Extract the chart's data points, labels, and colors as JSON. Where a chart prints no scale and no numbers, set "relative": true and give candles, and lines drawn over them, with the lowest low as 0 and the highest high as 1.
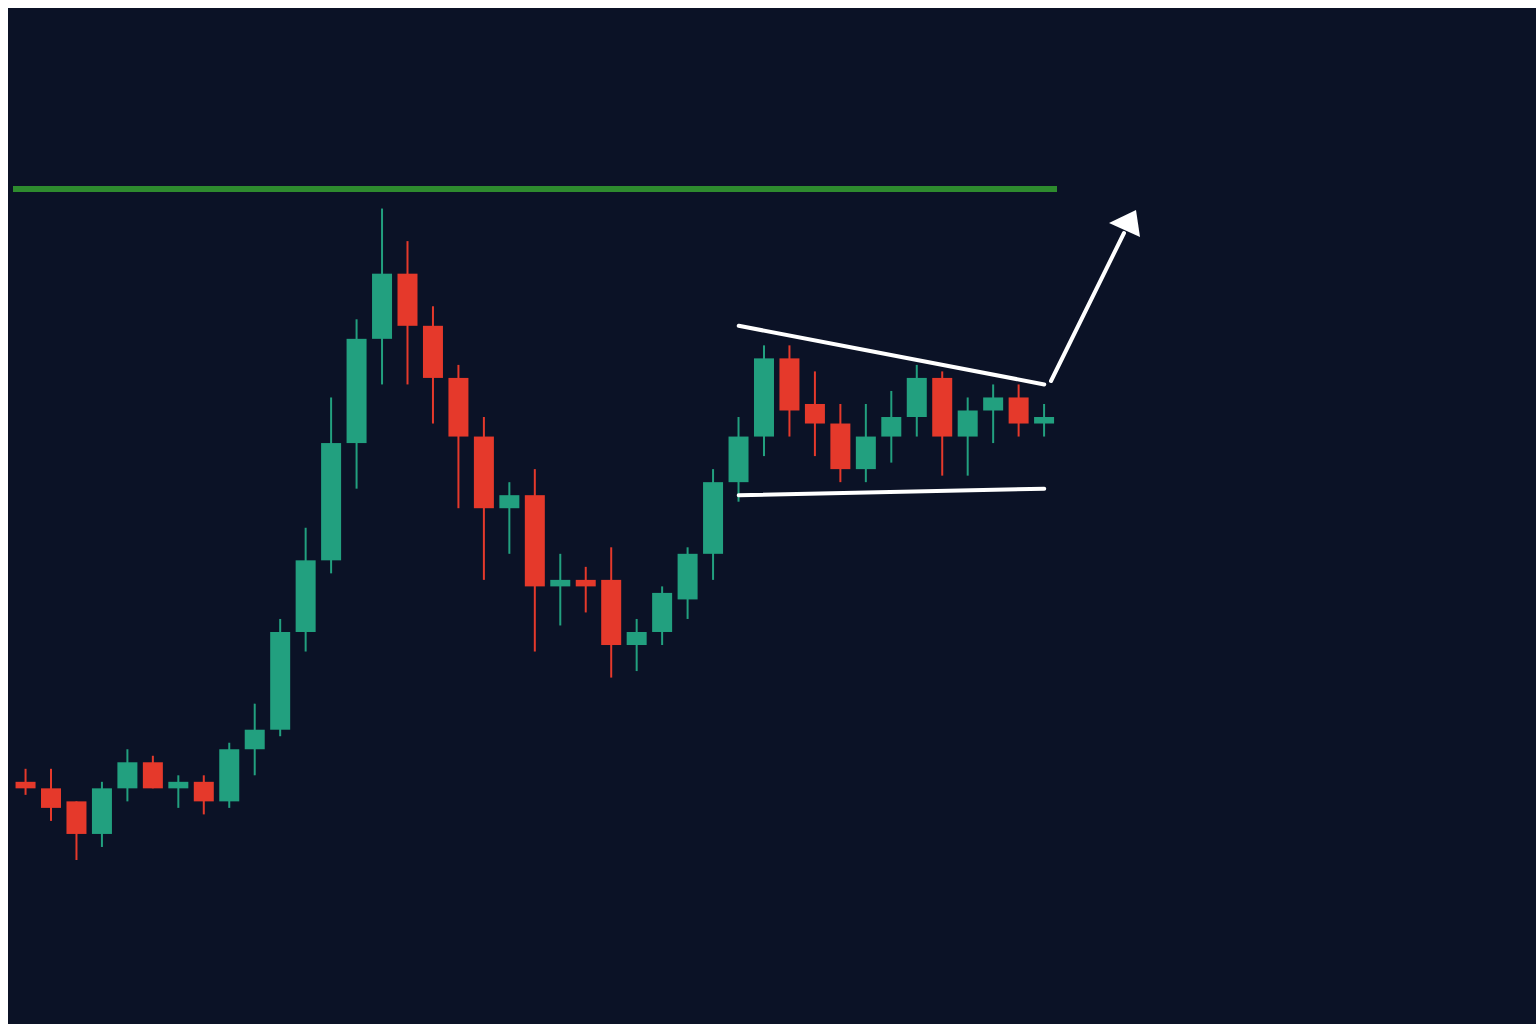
{
  "chart_data": {
    "type": "candlestick",
    "relative": true,
    "tick_labels": false,
    "grid": false,
    "legend": false,
    "categories": [
      null,
      null,
      null,
      null,
      null,
      null,
      null,
      null,
      null,
      null,
      null,
      null,
      null,
      null,
      null,
      null,
      null,
      null,
      null,
      null,
      null,
      null,
      null,
      null,
      null,
      null,
      null,
      null,
      null,
      null,
      null,
      null,
      null,
      null,
      null,
      null,
      null,
      null,
      null,
      null,
      null
    ],
    "ohlc": [
      [
        0.12,
        0.14,
        0.1,
        0.11
      ],
      [
        0.11,
        0.14,
        0.06,
        0.08
      ],
      [
        0.09,
        0.09,
        0,
        0.04
      ],
      [
        0.04,
        0.12,
        0.02,
        0.11
      ],
      [
        0.11,
        0.17,
        0.09,
        0.15
      ],
      [
        0.15,
        0.16,
        0.11,
        0.11
      ],
      [
        0.11,
        0.13,
        0.08,
        0.12
      ],
      [
        0.12,
        0.13,
        0.07,
        0.09
      ],
      [
        0.09,
        0.18,
        0.08,
        0.17
      ],
      [
        0.17,
        0.24,
        0.13,
        0.2
      ],
      [
        0.2,
        0.37,
        0.19,
        0.35
      ],
      [
        0.35,
        0.51,
        0.32,
        0.46
      ],
      [
        0.46,
        0.71,
        0.44,
        0.64
      ],
      [
        0.64,
        0.83,
        0.57,
        0.8
      ],
      [
        0.8,
        1,
        0.73,
        0.9
      ],
      [
        0.9,
        0.95,
        0.73,
        0.82
      ],
      [
        0.82,
        0.85,
        0.67,
        0.74
      ],
      [
        0.74,
        0.76,
        0.54,
        0.65
      ],
      [
        0.65,
        0.68,
        0.43,
        0.54
      ],
      [
        0.54,
        0.58,
        0.47,
        0.56
      ],
      [
        0.56,
        0.6,
        0.32,
        0.42
      ],
      [
        0.42,
        0.47,
        0.36,
        0.43
      ],
      [
        0.43,
        0.45,
        0.38,
        0.42
      ],
      [
        0.43,
        0.48,
        0.28,
        0.33
      ],
      [
        0.33,
        0.37,
        0.29,
        0.35
      ],
      [
        0.35,
        0.42,
        0.33,
        0.41
      ],
      [
        0.4,
        0.48,
        0.37,
        0.47
      ],
      [
        0.47,
        0.6,
        0.43,
        0.58
      ],
      [
        0.58,
        0.68,
        0.55,
        0.65
      ],
      [
        0.65,
        0.79,
        0.62,
        0.77
      ],
      [
        0.77,
        0.79,
        0.65,
        0.69
      ],
      [
        0.7,
        0.75,
        0.62,
        0.67
      ],
      [
        0.67,
        0.7,
        0.58,
        0.6
      ],
      [
        0.6,
        0.7,
        0.58,
        0.65
      ],
      [
        0.65,
        0.72,
        0.61,
        0.68
      ],
      [
        0.68,
        0.76,
        0.65,
        0.74
      ],
      [
        0.74,
        0.75,
        0.59,
        0.65
      ],
      [
        0.65,
        0.71,
        0.59,
        0.69
      ],
      [
        0.69,
        0.73,
        0.64,
        0.71
      ],
      [
        0.71,
        0.73,
        0.65,
        0.67
      ],
      [
        0.67,
        0.7,
        0.65,
        0.68
      ]
    ],
    "series": [
      {
        "type": "line",
        "color": "#ffffff",
        "values": [
          null,
          null,
          null,
          null,
          null,
          null,
          null,
          null,
          null,
          null,
          null,
          null,
          null,
          null,
          null,
          null,
          null,
          null,
          null,
          null,
          null,
          null,
          null,
          null,
          null,
          null,
          null,
          null,
          0.82,
          null,
          null,
          null,
          null,
          null,
          null,
          null,
          null,
          null,
          null,
          null,
          0.73
        ]
      },
      {
        "type": "line",
        "color": "#ffffff",
        "values": [
          null,
          null,
          null,
          null,
          null,
          null,
          null,
          null,
          null,
          null,
          null,
          null,
          null,
          null,
          null,
          null,
          null,
          null,
          null,
          null,
          null,
          null,
          null,
          null,
          null,
          null,
          null,
          null,
          0.56,
          null,
          null,
          null,
          null,
          null,
          null,
          null,
          null,
          null,
          null,
          null,
          0.57
        ]
      }
    ],
    "ref_lines": [
      {
        "axis": "y",
        "value": 1.03,
        "color": "#2e8b2e"
      }
    ]
  }
}
